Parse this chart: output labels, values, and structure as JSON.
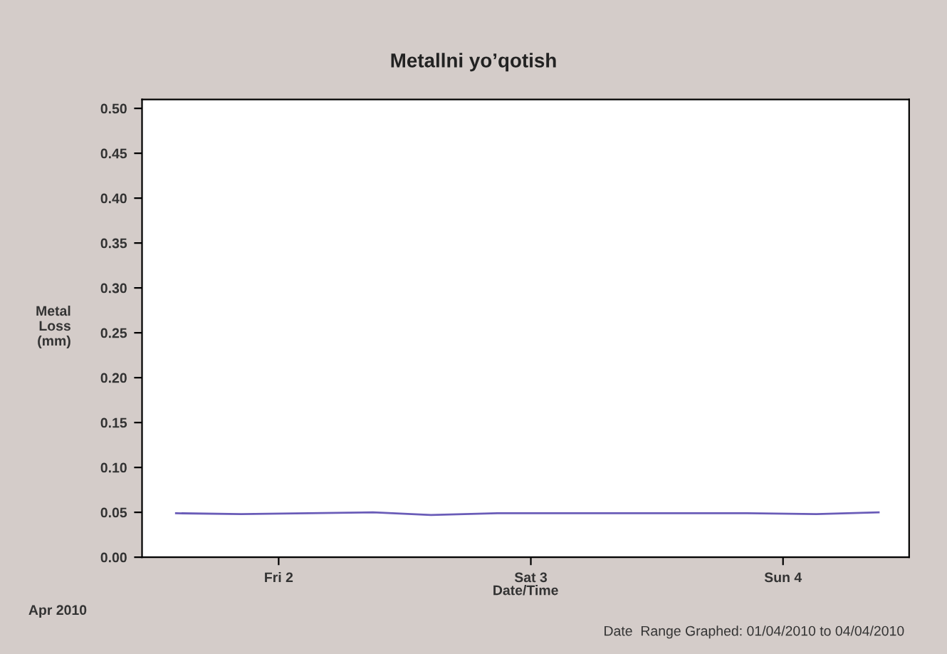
{
  "chart_data": {
    "type": "line",
    "title": "Metallni yo’qotish",
    "xlabel": "Date/Time",
    "ylabel": "Metal Loss (mm)",
    "x": [
      "2010-04-01T14:14",
      "2010-04-01T20:26",
      "2010-04-02T08:58",
      "2010-04-02T14:30",
      "2010-04-02T20:50",
      "2010-04-03T08:42",
      "2010-04-03T20:34",
      "2010-04-04T03:10",
      "2010-04-04T09:06"
    ],
    "series": [
      {
        "color": "#6a5cb8",
        "values": [
          0.049,
          0.048,
          0.05,
          0.047,
          0.049,
          0.049,
          0.049,
          0.048,
          0.05
        ]
      }
    ],
    "xlim": [
      "2010-04-01T11:00",
      "2010-04-04T12:00"
    ],
    "xticks": [
      {
        "value": "2010-04-02",
        "label": "Fri 2"
      },
      {
        "value": "2010-04-03",
        "label": "Sat 3"
      },
      {
        "value": "2010-04-04",
        "label": "Sun 4"
      }
    ],
    "ylim": [
      0,
      0.51
    ],
    "yticks": [
      {
        "value": 0,
        "label": "0.00"
      },
      {
        "value": 0.05,
        "label": "0.05"
      },
      {
        "value": 0.1,
        "label": "0.10"
      },
      {
        "value": 0.15,
        "label": "0.15"
      },
      {
        "value": 0.2,
        "label": "0.20"
      },
      {
        "value": 0.25,
        "label": "0.25"
      },
      {
        "value": 0.3,
        "label": "0.30"
      },
      {
        "value": 0.35,
        "label": "0.35"
      },
      {
        "value": 0.4,
        "label": "0.40"
      },
      {
        "value": 0.45,
        "label": "0.45"
      },
      {
        "value": 0.5,
        "label": "0.50"
      }
    ],
    "grid": false,
    "legend": false,
    "marker": "none",
    "line_style": "solid",
    "annotations": [
      "Apr 2010",
      "Date  Range Graphed: 01/04/2010 to 04/04/2010"
    ]
  }
}
